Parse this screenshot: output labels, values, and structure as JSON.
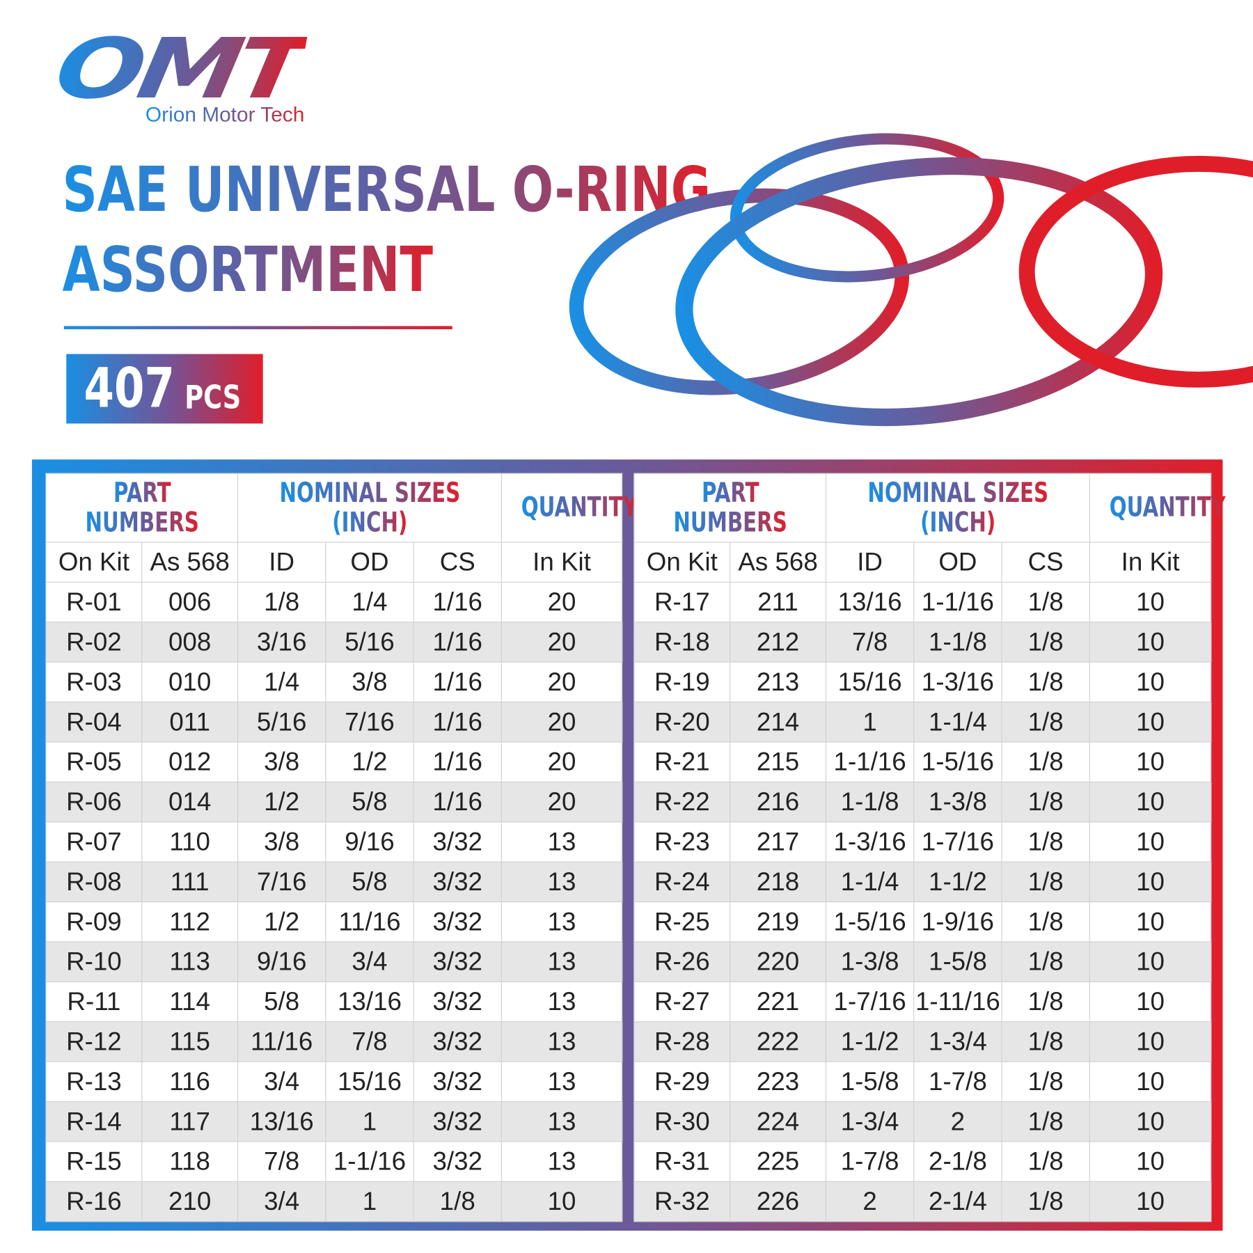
{
  "brand": {
    "logo_text": "OMT",
    "tagline": "Orion Motor Tech"
  },
  "title": {
    "line1": "SAE UNIVERSAL O-RING",
    "line2": "ASSORTMENT"
  },
  "badge": {
    "count": "407",
    "unit": "PCS"
  },
  "colors": {
    "blue": "#1a8fe3",
    "purple": "#6a5a9a",
    "red": "#e01e2a",
    "row_alt": "#e6e6e6"
  },
  "table": {
    "group_headers": [
      "PART NUMBERS",
      "NOMINAL SIZES (INCH)",
      "QUANTITY"
    ],
    "part_line1": "PART",
    "part_line2": "NUMBERS",
    "nominal_line1": "NOMINAL SIZES",
    "nominal_line2": "(INCH)",
    "quantity": "QUANTITY",
    "columns": [
      "On Kit",
      "As 568",
      "ID",
      "OD",
      "CS",
      "In Kit"
    ],
    "left_rows": [
      [
        "R-01",
        "006",
        "1/8",
        "1/4",
        "1/16",
        "20"
      ],
      [
        "R-02",
        "008",
        "3/16",
        "5/16",
        "1/16",
        "20"
      ],
      [
        "R-03",
        "010",
        "1/4",
        "3/8",
        "1/16",
        "20"
      ],
      [
        "R-04",
        "011",
        "5/16",
        "7/16",
        "1/16",
        "20"
      ],
      [
        "R-05",
        "012",
        "3/8",
        "1/2",
        "1/16",
        "20"
      ],
      [
        "R-06",
        "014",
        "1/2",
        "5/8",
        "1/16",
        "20"
      ],
      [
        "R-07",
        "110",
        "3/8",
        "9/16",
        "3/32",
        "13"
      ],
      [
        "R-08",
        "111",
        "7/16",
        "5/8",
        "3/32",
        "13"
      ],
      [
        "R-09",
        "112",
        "1/2",
        "11/16",
        "3/32",
        "13"
      ],
      [
        "R-10",
        "113",
        "9/16",
        "3/4",
        "3/32",
        "13"
      ],
      [
        "R-11",
        "114",
        "5/8",
        "13/16",
        "3/32",
        "13"
      ],
      [
        "R-12",
        "115",
        "11/16",
        "7/8",
        "3/32",
        "13"
      ],
      [
        "R-13",
        "116",
        "3/4",
        "15/16",
        "3/32",
        "13"
      ],
      [
        "R-14",
        "117",
        "13/16",
        "1",
        "3/32",
        "13"
      ],
      [
        "R-15",
        "118",
        "7/8",
        "1-1/16",
        "3/32",
        "13"
      ],
      [
        "R-16",
        "210",
        "3/4",
        "1",
        "1/8",
        "10"
      ]
    ],
    "right_rows": [
      [
        "R-17",
        "211",
        "13/16",
        "1-1/16",
        "1/8",
        "10"
      ],
      [
        "R-18",
        "212",
        "7/8",
        "1-1/8",
        "1/8",
        "10"
      ],
      [
        "R-19",
        "213",
        "15/16",
        "1-3/16",
        "1/8",
        "10"
      ],
      [
        "R-20",
        "214",
        "1",
        "1-1/4",
        "1/8",
        "10"
      ],
      [
        "R-21",
        "215",
        "1-1/16",
        "1-5/16",
        "1/8",
        "10"
      ],
      [
        "R-22",
        "216",
        "1-1/8",
        "1-3/8",
        "1/8",
        "10"
      ],
      [
        "R-23",
        "217",
        "1-3/16",
        "1-7/16",
        "1/8",
        "10"
      ],
      [
        "R-24",
        "218",
        "1-1/4",
        "1-1/2",
        "1/8",
        "10"
      ],
      [
        "R-25",
        "219",
        "1-5/16",
        "1-9/16",
        "1/8",
        "10"
      ],
      [
        "R-26",
        "220",
        "1-3/8",
        "1-5/8",
        "1/8",
        "10"
      ],
      [
        "R-27",
        "221",
        "1-7/16",
        "1-11/16",
        "1/8",
        "10"
      ],
      [
        "R-28",
        "222",
        "1-1/2",
        "1-3/4",
        "1/8",
        "10"
      ],
      [
        "R-29",
        "223",
        "1-5/8",
        "1-7/8",
        "1/8",
        "10"
      ],
      [
        "R-30",
        "224",
        "1-3/4",
        "2",
        "1/8",
        "10"
      ],
      [
        "R-31",
        "225",
        "1-7/8",
        "2-1/8",
        "1/8",
        "10"
      ],
      [
        "R-32",
        "226",
        "2",
        "2-1/4",
        "1/8",
        "10"
      ]
    ]
  }
}
